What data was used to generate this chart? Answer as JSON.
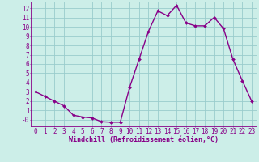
{
  "x": [
    0,
    1,
    2,
    3,
    4,
    5,
    6,
    7,
    8,
    9,
    10,
    11,
    12,
    13,
    14,
    15,
    16,
    17,
    18,
    19,
    20,
    21,
    22,
    23
  ],
  "y": [
    3.0,
    2.5,
    2.0,
    1.5,
    0.5,
    0.3,
    0.2,
    -0.2,
    -0.25,
    -0.25,
    3.5,
    6.5,
    9.5,
    11.7,
    11.2,
    12.3,
    10.4,
    10.1,
    10.1,
    11.0,
    9.8,
    6.5,
    4.2,
    2.0
  ],
  "line_color": "#880088",
  "marker": "D",
  "marker_size": 2.0,
  "line_width": 1.0,
  "bg_color": "#cceee8",
  "grid_color": "#99cccc",
  "axis_label_color": "#880088",
  "tick_color": "#880088",
  "xlabel": "Windchill (Refroidissement éolien,°C)",
  "xlim": [
    -0.5,
    23.5
  ],
  "ylim": [
    -0.7,
    12.7
  ],
  "yticks": [
    0,
    1,
    2,
    3,
    4,
    5,
    6,
    7,
    8,
    9,
    10,
    11,
    12
  ],
  "xticks": [
    0,
    1,
    2,
    3,
    4,
    5,
    6,
    7,
    8,
    9,
    10,
    11,
    12,
    13,
    14,
    15,
    16,
    17,
    18,
    19,
    20,
    21,
    22,
    23
  ],
  "font_size": 5.5,
  "xlabel_font_size": 6.0
}
